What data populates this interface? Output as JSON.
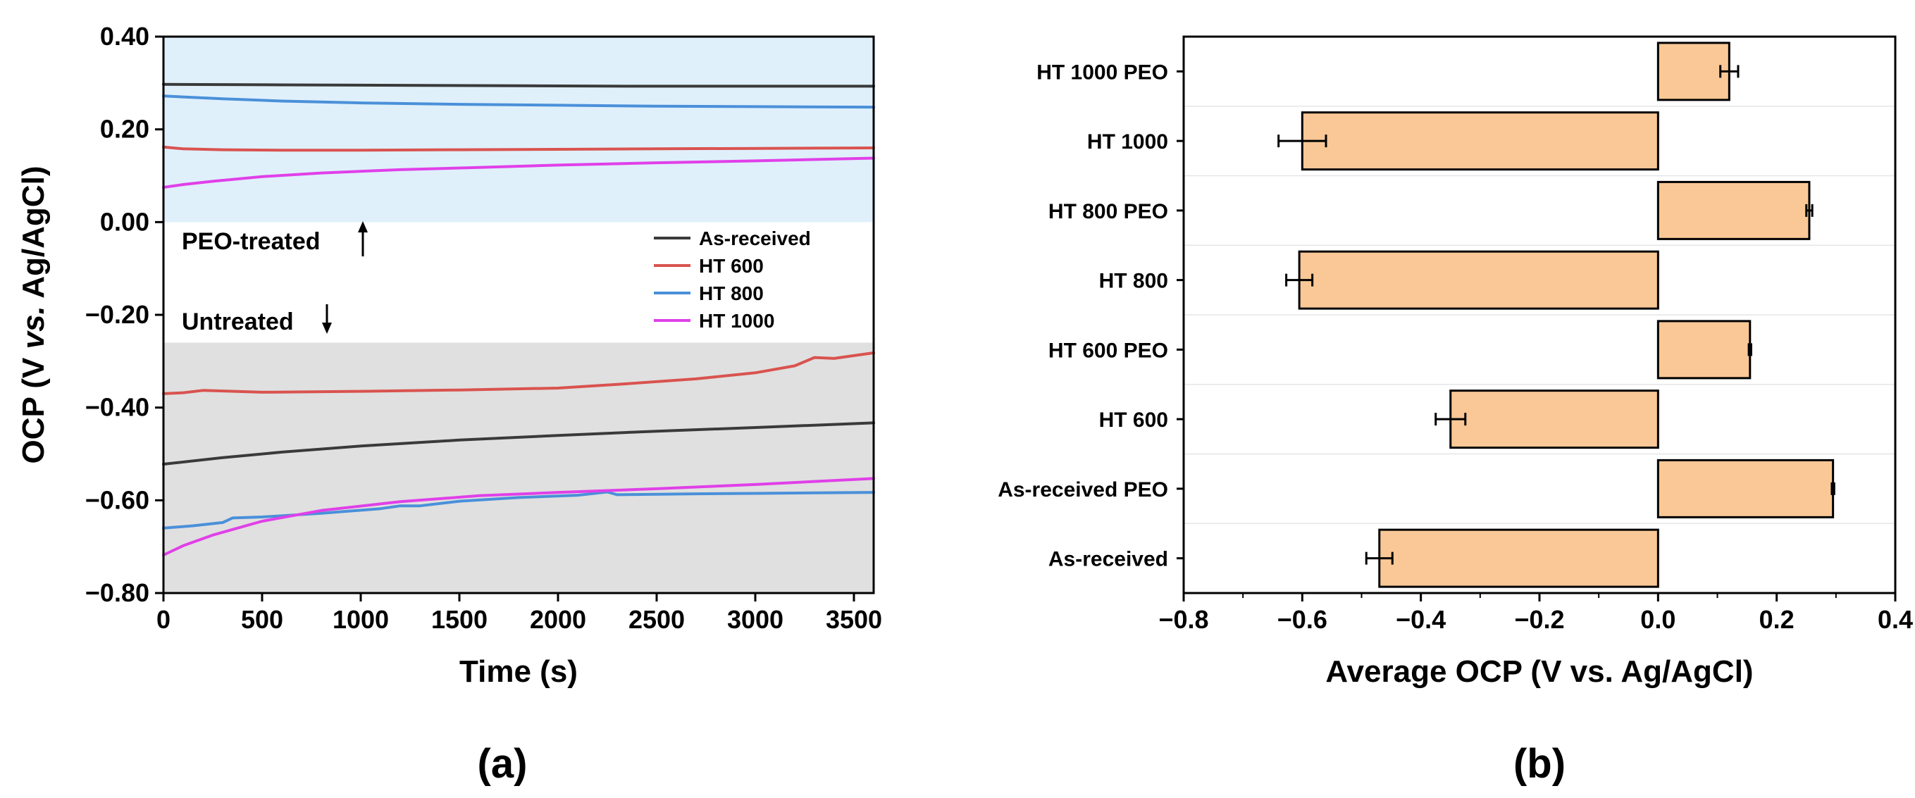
{
  "chart_data": [
    {
      "panel": "(a)",
      "type": "line",
      "xlabel": "Time (s)",
      "ylabel": "OCP (V vs. Ag/AgCl)",
      "ylabel_parts": [
        "OCP (V ",
        "vs.",
        " Ag/AgCl)"
      ],
      "xlim": [
        0,
        3600
      ],
      "ylim": [
        -0.8,
        0.4
      ],
      "xticks": [
        0,
        500,
        1000,
        1500,
        2000,
        2500,
        3000,
        3500
      ],
      "yticks": [
        0.4,
        0.2,
        0.0,
        -0.2,
        -0.4,
        -0.6,
        -0.8
      ],
      "ytick_labels": [
        "0.40",
        "0.20",
        "0.00",
        "−0.20",
        "−0.40",
        "−0.60",
        "−0.80"
      ],
      "regions": [
        {
          "name": "PEO-treated",
          "label": "PEO-treated",
          "y_range": [
            0.0,
            0.4
          ],
          "color": "#dff0fb"
        },
        {
          "name": "Untreated",
          "label": "Untreated",
          "y_range": [
            -0.8,
            -0.26
          ],
          "color": "#e0e0e0"
        }
      ],
      "legend": {
        "position": "right",
        "entries": [
          "As-received",
          "HT 600",
          "HT 800",
          "HT 1000"
        ]
      },
      "series": [
        {
          "name": "As-received",
          "group": "PEO-treated",
          "color": "#3a3a3a",
          "x": [
            0,
            600,
            1200,
            1800,
            2400,
            3000,
            3600
          ],
          "y": [
            0.297,
            0.296,
            0.295,
            0.294,
            0.293,
            0.293,
            0.293
          ]
        },
        {
          "name": "HT 800",
          "group": "PEO-treated",
          "color": "#4a90d9",
          "x": [
            0,
            300,
            600,
            1000,
            1500,
            2000,
            2500,
            3000,
            3600
          ],
          "y": [
            0.272,
            0.266,
            0.261,
            0.257,
            0.254,
            0.252,
            0.25,
            0.249,
            0.248
          ]
        },
        {
          "name": "HT 600",
          "group": "PEO-treated",
          "color": "#d9534f",
          "x": [
            0,
            100,
            300,
            600,
            1000,
            1500,
            2000,
            2500,
            3000,
            3600
          ],
          "y": [
            0.162,
            0.158,
            0.156,
            0.155,
            0.155,
            0.156,
            0.157,
            0.158,
            0.159,
            0.16
          ]
        },
        {
          "name": "HT 1000",
          "group": "PEO-treated",
          "color": "#e040e8",
          "x": [
            0,
            100,
            250,
            500,
            800,
            1200,
            1600,
            2000,
            2500,
            3000,
            3600
          ],
          "y": [
            0.075,
            0.081,
            0.088,
            0.098,
            0.106,
            0.113,
            0.118,
            0.123,
            0.128,
            0.132,
            0.138
          ]
        },
        {
          "name": "HT 600",
          "group": "Untreated",
          "color": "#d9534f",
          "x": [
            0,
            100,
            200,
            500,
            1000,
            1500,
            2000,
            2300,
            2700,
            3000,
            3200,
            3300,
            3400,
            3500,
            3600
          ],
          "y": [
            -0.37,
            -0.368,
            -0.363,
            -0.367,
            -0.365,
            -0.362,
            -0.358,
            -0.35,
            -0.338,
            -0.325,
            -0.31,
            -0.292,
            -0.294,
            -0.288,
            -0.282
          ]
        },
        {
          "name": "As-received",
          "group": "Untreated",
          "color": "#3a3a3a",
          "x": [
            0,
            300,
            600,
            1000,
            1500,
            2000,
            2500,
            3000,
            3600
          ],
          "y": [
            -0.522,
            -0.508,
            -0.496,
            -0.483,
            -0.47,
            -0.46,
            -0.451,
            -0.443,
            -0.433
          ]
        },
        {
          "name": "HT 800",
          "group": "Untreated",
          "color": "#4a90d9",
          "x": [
            0,
            150,
            300,
            350,
            500,
            800,
            1100,
            1200,
            1300,
            1500,
            1800,
            2100,
            2250,
            2300,
            2700,
            3000,
            3600
          ],
          "y": [
            -0.66,
            -0.655,
            -0.648,
            -0.638,
            -0.636,
            -0.628,
            -0.618,
            -0.612,
            -0.612,
            -0.602,
            -0.594,
            -0.589,
            -0.582,
            -0.588,
            -0.586,
            -0.585,
            -0.583
          ]
        },
        {
          "name": "HT 1000",
          "group": "Untreated",
          "color": "#e040e8",
          "x": [
            0,
            100,
            250,
            500,
            800,
            1200,
            1600,
            2000,
            2500,
            3000,
            3600
          ],
          "y": [
            -0.718,
            -0.698,
            -0.675,
            -0.645,
            -0.622,
            -0.603,
            -0.59,
            -0.583,
            -0.575,
            -0.566,
            -0.553
          ]
        }
      ]
    },
    {
      "panel": "(b)",
      "type": "bar",
      "orientation": "horizontal",
      "xlabel": "Average OCP (V vs. Ag/AgCl)",
      "xlim": [
        -0.8,
        0.4
      ],
      "xticks": [
        -0.8,
        -0.6,
        -0.4,
        -0.2,
        0.0,
        0.2,
        0.4
      ],
      "xtick_labels": [
        "−0.8",
        "−0.6",
        "−0.4",
        "−0.2",
        "0.0",
        "0.2",
        "0.4"
      ],
      "bar_color": "#f9c896",
      "categories": [
        "HT 1000 PEO",
        "HT 1000",
        "HT 800 PEO",
        "HT 800",
        "HT 600 PEO",
        "HT 600",
        "As-received PEO",
        "As-received"
      ],
      "values": [
        0.12,
        -0.6,
        0.255,
        -0.605,
        0.155,
        -0.35,
        0.295,
        -0.47
      ],
      "errors": [
        0.015,
        0.04,
        0.005,
        0.022,
        0.002,
        0.025,
        0.002,
        0.022
      ]
    }
  ]
}
